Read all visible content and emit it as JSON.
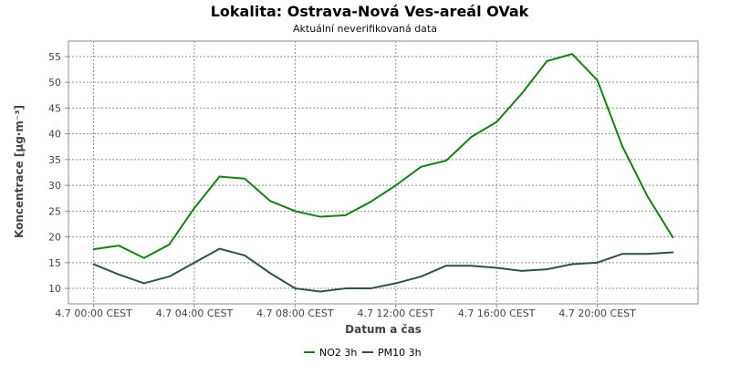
{
  "chart_data": {
    "type": "line",
    "title": "Lokalita: Ostrava-Nová Ves-areál OVak",
    "subtitle": "Aktuální neverifikovaná data",
    "xlabel": "Datum a čas",
    "ylabel": "Koncentrace [µg·m⁻³]",
    "x_tick_labels": [
      "4.7 00:00 CEST",
      "4.7 04:00 CEST",
      "4.7 08:00 CEST",
      "4.7 12:00 CEST",
      "4.7 16:00 CEST",
      "4.7 20:00 CEST"
    ],
    "x_tick_hours": [
      0,
      4,
      8,
      12,
      16,
      20
    ],
    "y_tick_values": [
      10,
      15,
      20,
      25,
      30,
      35,
      40,
      45,
      50,
      55
    ],
    "xlim_hours": [
      -1,
      24
    ],
    "ylim": [
      7,
      58
    ],
    "grid": true,
    "legend_position": "bottom",
    "x_hours": [
      0,
      1,
      2,
      3,
      4,
      5,
      6,
      7,
      8,
      9,
      10,
      11,
      12,
      13,
      14,
      15,
      16,
      17,
      18,
      19,
      20,
      21,
      22,
      23
    ],
    "series": [
      {
        "name": "NO2 3h",
        "color": "#168016",
        "values": [
          17.6,
          18.3,
          15.9,
          18.5,
          25.6,
          31.7,
          31.3,
          27.0,
          25.0,
          23.9,
          24.2,
          26.8,
          30.0,
          33.6,
          34.8,
          39.4,
          42.3,
          47.8,
          54.1,
          55.5,
          50.4,
          37.5,
          27.8,
          19.9
        ]
      },
      {
        "name": "PM10 3h",
        "color": "#2f4f4f",
        "values": [
          14.7,
          12.7,
          11.0,
          12.3,
          15.0,
          17.7,
          16.4,
          13.0,
          10.0,
          9.4,
          10.0,
          10.0,
          11.0,
          12.3,
          14.4,
          14.4,
          14.0,
          13.4,
          13.7,
          14.7,
          15.0,
          16.7,
          16.7,
          17.0
        ]
      }
    ]
  }
}
